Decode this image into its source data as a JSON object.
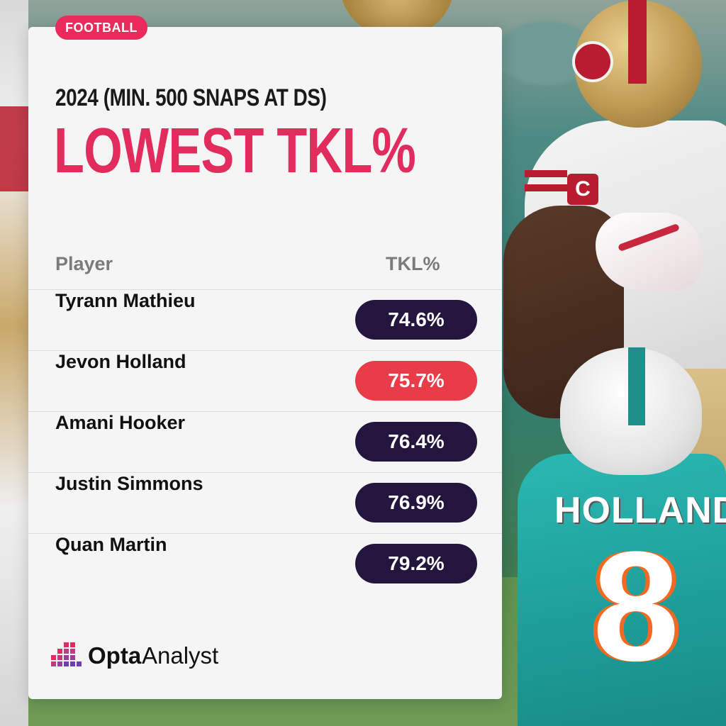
{
  "tag": "FOOTBALL",
  "subtitle": "2024 (MIN. 500 SNAPS AT DS)",
  "title": "LOWEST TKL%",
  "columns": {
    "player": "Player",
    "tkl": "TKL%"
  },
  "rows": [
    {
      "player": "Tyrann Mathieu",
      "tkl": "74.6%"
    },
    {
      "player": "Jevon Holland",
      "tkl": "75.7%",
      "highlight": true
    },
    {
      "player": "Amani Hooker",
      "tkl": "76.4%"
    },
    {
      "player": "Justin Simmons",
      "tkl": "76.9%"
    },
    {
      "player": "Quan Martin",
      "tkl": "79.2%"
    }
  ],
  "brand": {
    "name_bold": "Opta",
    "name_light": "Analyst",
    "icon": "opta-bars-icon"
  },
  "photo": {
    "nameplate": "HOLLAND",
    "number": "8",
    "captain_patch": "C"
  },
  "colors": {
    "accent_pink": "#e22c5e",
    "tag_bg": "#ea2a5a",
    "pill_default": "#23153d",
    "pill_highlight": "#e83d49",
    "card_bg": "#f5f5f5"
  }
}
